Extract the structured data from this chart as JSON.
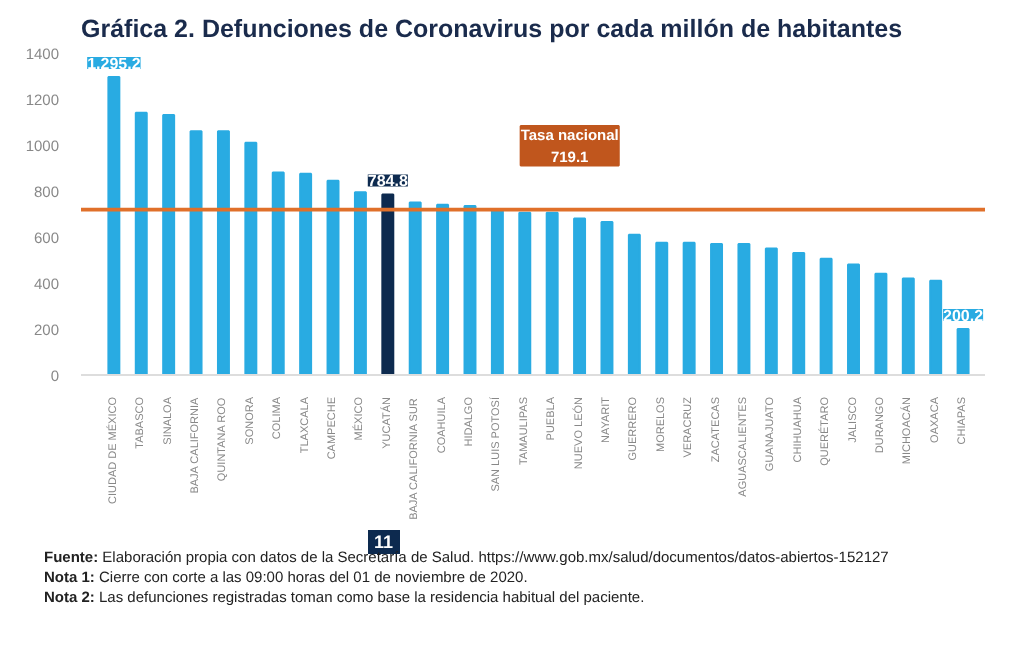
{
  "chart_data": {
    "type": "bar",
    "title": "Gráfica 2. Defunciones de Coronavirus por cada millón de habitantes",
    "categories": [
      "CIUDAD DE MÉXICO",
      "TABASCO",
      "SINALOA",
      "BAJA CALIFORNIA",
      "QUINTANA ROO",
      "SONORA",
      "COLIMA",
      "TLAXCALA",
      "CAMPECHE",
      "MÉXICO",
      "YUCATÁN",
      "BAJA CALIFORNIA SUR",
      "COAHUILA",
      "HIDALGO",
      "SAN LUIS POTOSÍ",
      "TAMAULIPAS",
      "PUEBLA",
      "NUEVO LEÓN",
      "NAYARIT",
      "GUERRERO",
      "MORELOS",
      "VERACRUZ",
      "ZACATECAS",
      "AGUASCALIENTES",
      "GUANAJUATO",
      "CHIHUAHUA",
      "QUERÉTARO",
      "JALISCO",
      "DURANGO",
      "MICHOACÁN",
      "OAXACA",
      "CHIAPAS"
    ],
    "values": [
      1295.2,
      1140,
      1130,
      1060,
      1060,
      1010,
      880,
      875,
      845,
      795,
      784.8,
      750,
      740,
      735,
      715,
      705,
      705,
      680,
      665,
      610,
      575,
      575,
      570,
      570,
      550,
      530,
      505,
      480,
      440,
      420,
      410,
      200.2
    ],
    "colors": [
      "#29abe2",
      "#29abe2",
      "#29abe2",
      "#29abe2",
      "#29abe2",
      "#29abe2",
      "#29abe2",
      "#29abe2",
      "#29abe2",
      "#29abe2",
      "#0d2a4f",
      "#29abe2",
      "#29abe2",
      "#29abe2",
      "#29abe2",
      "#29abe2",
      "#29abe2",
      "#29abe2",
      "#29abe2",
      "#29abe2",
      "#29abe2",
      "#29abe2",
      "#29abe2",
      "#29abe2",
      "#29abe2",
      "#29abe2",
      "#29abe2",
      "#29abe2",
      "#29abe2",
      "#29abe2",
      "#29abe2",
      "#29abe2"
    ],
    "value_labels": [
      "1,295.2",
      null,
      null,
      null,
      null,
      null,
      null,
      null,
      null,
      null,
      "784.8",
      null,
      null,
      null,
      null,
      null,
      null,
      null,
      null,
      null,
      null,
      null,
      null,
      null,
      null,
      null,
      null,
      null,
      null,
      null,
      null,
      "200.2"
    ],
    "ylim": [
      0,
      1400
    ],
    "yticks": [
      0,
      200,
      400,
      600,
      800,
      1000,
      1200,
      1400
    ],
    "grid": false,
    "ref_lines": [
      {
        "axis": "y",
        "value": 719.1,
        "label": "Tasa nacional\n719.1",
        "color": "#e0702a"
      }
    ],
    "annotations": [
      "11",
      "Fuente: Elaboración propia con datos de la Secretaría de Salud. https://www.gob.mx/salud/documentos/datos-abiertos-152127",
      "Nota 1: Cierre con corte a las 09:00 horas del 01 de noviembre de 2020.",
      "Nota 2: Las defunciones registradas toman como base la residencia habitual del paciente."
    ]
  }
}
